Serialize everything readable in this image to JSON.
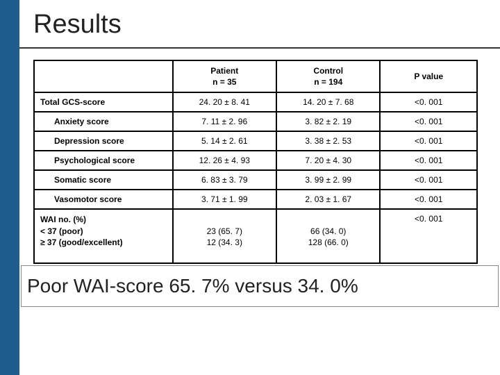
{
  "accent_color": "#1f5d8e",
  "title": "Results",
  "headers": {
    "label": "",
    "patient": "Patient\nn = 35",
    "control": "Control\nn = 194",
    "pvalue": "P value"
  },
  "rows": [
    {
      "label": "Total GCS-score",
      "indent": false,
      "patient": "24. 20 ± 8. 41",
      "control": "14. 20 ± 7. 68",
      "p": "<0. 001"
    },
    {
      "label": "Anxiety score",
      "indent": true,
      "patient": "7. 11  ± 2. 96",
      "control": "3. 82  ± 2. 19",
      "p": "<0. 001"
    },
    {
      "label": "Depression score",
      "indent": true,
      "patient": "5. 14  ± 2. 61",
      "control": "3. 38  ± 2. 53",
      "p": "<0. 001"
    },
    {
      "label": "Psychological score",
      "indent": true,
      "patient": "12. 26 ± 4. 93",
      "control": "7. 20  ± 4. 30",
      "p": "<0. 001"
    },
    {
      "label": "Somatic score",
      "indent": true,
      "patient": "6. 83  ± 3. 79",
      "control": "3. 99  ± 2. 99",
      "p": "<0. 001"
    },
    {
      "label": "Vasomotor score",
      "indent": true,
      "patient": "3. 71  ± 1. 99",
      "control": "2. 03  ± 1. 67",
      "p": "<0. 001"
    }
  ],
  "overlay_text": "Poor WAI-score 65. 7% versus 34. 0%",
  "wai": {
    "label": "WAI no. (%)\n< 37 (poor)\n≥ 37 (good/excellent)",
    "patient": "\n23 (65. 7)\n12 (34. 3)",
    "control": "\n66   (34. 0)\n128 (66. 0)",
    "p": "<0. 001"
  }
}
